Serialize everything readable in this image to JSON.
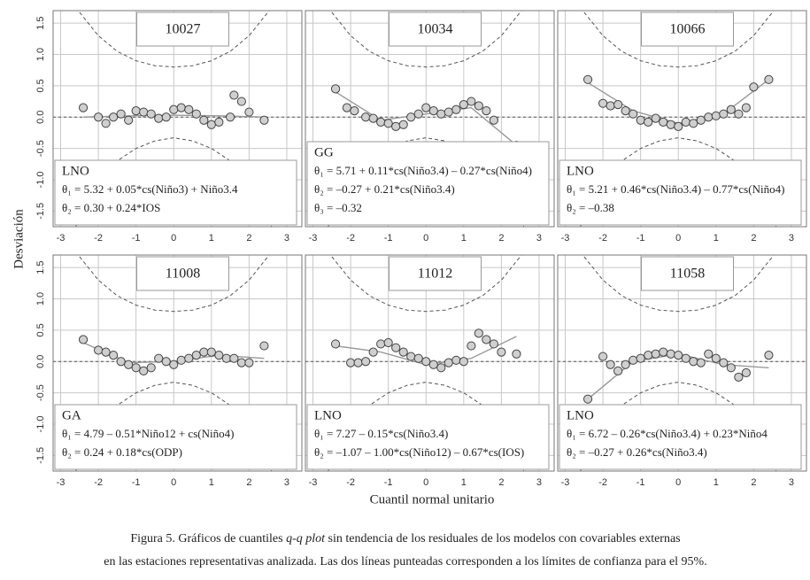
{
  "axes": {
    "xlim": [
      -3.2,
      3.4
    ],
    "ylim": [
      -1.75,
      1.7
    ],
    "xticks": [
      -3,
      -2,
      -1,
      0,
      1,
      2,
      3
    ],
    "yticks": [
      {
        "value": 1.5,
        "label": "1.5"
      },
      {
        "value": 1,
        "label": "1.0"
      },
      {
        "value": 0.5,
        "label": "0.5"
      },
      {
        "value": 0,
        "label": "0.0"
      },
      {
        "value": -0.5,
        "label": "-0.5"
      },
      {
        "value": -1,
        "label": "-1.0"
      },
      {
        "value": -1.5,
        "label": "-1.5"
      }
    ],
    "xlabel": "Cuantil normal unitario",
    "ylabel": "Desviación",
    "grid": true
  },
  "confidence_band": {
    "x": [
      -2.6,
      -2,
      -1.5,
      -1,
      -0.5,
      0,
      0.5,
      1,
      1.5,
      2,
      2.6
    ],
    "upper": [
      1.75,
      1.3,
      1.05,
      0.9,
      0.82,
      0.8,
      0.82,
      0.9,
      1.05,
      1.3,
      1.75
    ],
    "lower": [
      -1.75,
      -1.1,
      -0.7,
      -0.5,
      -0.38,
      -0.33,
      -0.38,
      -0.5,
      -0.7,
      -1.1,
      -1.75
    ]
  },
  "chart_data": [
    {
      "type": "scatter",
      "title": "10027",
      "point_color": "#cfcfcf",
      "annotation": [
        "LNO",
        "θ₁ = 5.32 + 0.05*cs(Niño3) + Niño3.4",
        "θ₂ = 0.30 + 0.24*IOS"
      ],
      "x": [
        -2.4,
        -2.0,
        -1.8,
        -1.6,
        -1.4,
        -1.2,
        -1.0,
        -0.8,
        -0.6,
        -0.4,
        -0.2,
        0.0,
        0.2,
        0.4,
        0.6,
        0.8,
        1.0,
        1.2,
        1.5,
        1.6,
        1.8,
        2.0,
        2.4
      ],
      "values": [
        0.15,
        0.0,
        -0.1,
        0.0,
        0.05,
        -0.05,
        0.1,
        0.08,
        0.05,
        -0.02,
        0.0,
        0.12,
        0.15,
        0.12,
        0.05,
        -0.05,
        -0.12,
        -0.08,
        0.0,
        0.35,
        0.25,
        0.08,
        -0.05
      ],
      "fit": {
        "x": [
          -2.4,
          -1.2,
          0,
          1.2,
          2.4
        ],
        "values": [
          0,
          0.02,
          0.03,
          0.02,
          0
        ]
      }
    },
    {
      "type": "scatter",
      "title": "10034",
      "point_color": "#cfcfcf",
      "annotation": [
        "GG",
        "θ₁ = 5.71 + 0.11*cs(Niño3.4) – 0.27*cs(Niño4)",
        "θ₂ = –0.27 + 0.21*cs(Niño3.4)",
        "θ₃ = –0.32"
      ],
      "x": [
        -2.4,
        -2.1,
        -1.9,
        -1.6,
        -1.4,
        -1.2,
        -1.0,
        -0.8,
        -0.6,
        -0.4,
        -0.2,
        0.0,
        0.2,
        0.4,
        0.6,
        0.8,
        1.0,
        1.2,
        1.4,
        1.6,
        1.8,
        2.4
      ],
      "values": [
        0.45,
        0.15,
        0.1,
        0.0,
        -0.02,
        -0.08,
        -0.1,
        -0.15,
        -0.12,
        0.0,
        0.05,
        0.15,
        0.1,
        0.05,
        0.08,
        0.12,
        0.2,
        0.25,
        0.18,
        0.1,
        -0.05,
        -0.45
      ],
      "fit": {
        "x": [
          -2.4,
          -1.2,
          0,
          1.2,
          2.4
        ],
        "values": [
          0.4,
          -0.05,
          0.05,
          0.15,
          -0.45
        ]
      }
    },
    {
      "type": "scatter",
      "title": "10066",
      "point_color": "#cfcfcf",
      "annotation": [
        "LNO",
        "θ₁ = 5.21 + 0.46*cs(Niño3.4) – 0.77*cs(Niño4)",
        "θ₂ = –0.38"
      ],
      "x": [
        -2.4,
        -2.0,
        -1.8,
        -1.6,
        -1.4,
        -1.2,
        -1.0,
        -0.8,
        -0.6,
        -0.4,
        -0.2,
        0.0,
        0.2,
        0.4,
        0.6,
        0.8,
        1.0,
        1.2,
        1.4,
        1.6,
        1.8,
        2.0,
        2.4
      ],
      "values": [
        0.6,
        0.22,
        0.18,
        0.2,
        0.1,
        0.05,
        -0.05,
        -0.08,
        -0.02,
        -0.08,
        -0.12,
        -0.15,
        -0.08,
        -0.1,
        -0.05,
        0.0,
        0.02,
        0.05,
        0.12,
        0.05,
        0.15,
        0.48,
        0.6
      ],
      "fit": {
        "x": [
          -2.4,
          -1.2,
          0,
          1.2,
          2.4
        ],
        "values": [
          0.55,
          0.1,
          -0.1,
          0.05,
          0.6
        ]
      }
    },
    {
      "type": "scatter",
      "title": "11008",
      "point_color": "#cfcfcf",
      "annotation": [
        "GA",
        "θ₁ = 4.79 – 0.51*Niño12 + cs(Niño4)",
        "θ₂ = 0.24 + 0.18*cs(ODP)"
      ],
      "x": [
        -2.4,
        -2.0,
        -1.8,
        -1.6,
        -1.4,
        -1.2,
        -1.0,
        -0.8,
        -0.6,
        -0.4,
        -0.2,
        0.0,
        0.2,
        0.4,
        0.6,
        0.8,
        1.0,
        1.2,
        1.4,
        1.6,
        1.8,
        2.0,
        2.4
      ],
      "values": [
        0.35,
        0.18,
        0.15,
        0.1,
        0.0,
        -0.05,
        -0.1,
        -0.15,
        -0.1,
        0.05,
        0.0,
        -0.05,
        0.02,
        0.05,
        0.1,
        0.15,
        0.15,
        0.1,
        0.05,
        0.05,
        -0.02,
        -0.02,
        0.25
      ],
      "fit": {
        "x": [
          -2.4,
          -1.2,
          0,
          1.2,
          2.4
        ],
        "values": [
          0.3,
          -0.02,
          0.0,
          0.1,
          0.05
        ]
      }
    },
    {
      "type": "scatter",
      "title": "11012",
      "point_color": "#cfcfcf",
      "annotation": [
        "LNO",
        "θ₁ = 7.27 – 0.15*cs(Niño3.4)",
        "θ₂ = –1.07 – 1.00*cs(Niño12) – 0.67*cs(IOS)"
      ],
      "x": [
        -2.4,
        -2.0,
        -1.8,
        -1.6,
        -1.4,
        -1.2,
        -1.0,
        -0.8,
        -0.6,
        -0.4,
        -0.2,
        0.0,
        0.2,
        0.4,
        0.6,
        0.8,
        1.0,
        1.2,
        1.4,
        1.6,
        1.8,
        2.0,
        2.4
      ],
      "values": [
        0.28,
        -0.02,
        -0.02,
        0.0,
        0.15,
        0.28,
        0.3,
        0.22,
        0.15,
        0.08,
        0.05,
        0.0,
        -0.05,
        -0.1,
        -0.02,
        0.02,
        0.0,
        0.25,
        0.45,
        0.35,
        0.28,
        0.15,
        0.12
      ],
      "fit": {
        "x": [
          -2.4,
          -1.2,
          0,
          1.2,
          2.4
        ],
        "values": [
          0.25,
          0.15,
          -0.05,
          0.05,
          0.4
        ]
      }
    },
    {
      "type": "scatter",
      "title": "11058",
      "point_color": "#cfcfcf",
      "annotation": [
        "LNO",
        "θ₁ = 6.72 – 0.26*cs(Niño3.4) + 0.23*Niño4",
        "θ₂ = –0.27 + 0.26*cs(Niño3.4)"
      ],
      "x": [
        -2.4,
        -2.0,
        -1.8,
        -1.6,
        -1.4,
        -1.2,
        -1.0,
        -0.8,
        -0.6,
        -0.4,
        -0.2,
        0.0,
        0.2,
        0.4,
        0.6,
        0.8,
        1.0,
        1.2,
        1.4,
        1.6,
        1.8,
        2.4
      ],
      "values": [
        -0.6,
        0.08,
        -0.05,
        -0.15,
        -0.05,
        0.02,
        0.05,
        0.1,
        0.12,
        0.15,
        0.12,
        0.1,
        0.05,
        0.0,
        -0.02,
        0.12,
        0.05,
        -0.02,
        -0.1,
        -0.25,
        -0.18,
        0.1
      ],
      "fit": {
        "x": [
          -2.4,
          -1.2,
          0,
          1.2,
          2.4
        ],
        "values": [
          -0.6,
          0.0,
          0.12,
          -0.05,
          -0.1
        ]
      }
    }
  ],
  "caption": {
    "line1": [
      "Figura 5. Gráficos de cuantiles ",
      "q-q plot",
      " sin tendencia de los residuales de los modelos con covariables externas"
    ],
    "line2": "en las estaciones representativas analizada. Las dos líneas punteadas corresponden a los límites de confianza para el 95%."
  }
}
